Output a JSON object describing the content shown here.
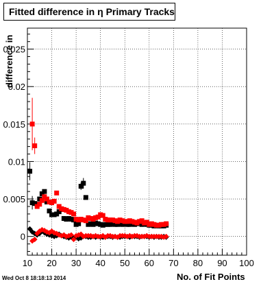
{
  "title": "Fitted difference in  η Primary Tracks",
  "datestamp": "Wed Oct  8 18:18:13 2014",
  "chart_data": {
    "type": "scatter",
    "xlabel": "No. of Fit Points",
    "ylabel": "difference in",
    "xlim": [
      10,
      100
    ],
    "ylim": [
      -0.0025,
      0.0278
    ],
    "grid": true,
    "xticks": [
      "10",
      "20",
      "30",
      "40",
      "50",
      "60",
      "70",
      "80",
      "90",
      "100"
    ],
    "xtick_values": [
      10,
      20,
      30,
      40,
      50,
      60,
      70,
      80,
      90,
      100
    ],
    "yticks": [
      "0",
      "0.005",
      "0.01",
      "0.015",
      "0.02",
      "0.025"
    ],
    "ytick_values": [
      0,
      0.005,
      0.01,
      0.015,
      0.02,
      0.025
    ],
    "series": [
      {
        "color": "#000000",
        "marker": "square",
        "points": [
          [
            11,
            0.0087
          ],
          [
            12,
            0.0045
          ],
          [
            13,
            0.0044
          ],
          [
            14,
            0.0043
          ],
          [
            15,
            0.005
          ],
          [
            16,
            0.0057
          ],
          [
            17,
            0.006
          ],
          [
            18,
            0.0046
          ],
          [
            19,
            0.0034
          ],
          [
            20,
            0.0029
          ],
          [
            21,
            0.0029
          ],
          [
            22,
            0.003
          ],
          [
            23,
            0.0033
          ],
          [
            24,
            0.0036
          ],
          [
            25,
            0.0024
          ],
          [
            26,
            0.0023
          ],
          [
            27,
            0.0024
          ],
          [
            28,
            0.0023
          ],
          [
            29,
            0.0022
          ],
          [
            30,
            0.0016
          ],
          [
            31,
            0.0017
          ],
          [
            32,
            0.0067
          ],
          [
            33,
            0.0071
          ],
          [
            34,
            0.0052
          ],
          [
            35,
            0.0016
          ],
          [
            36,
            0.0017
          ],
          [
            37,
            0.0016
          ],
          [
            38,
            0.0018
          ],
          [
            39,
            0.0017
          ],
          [
            40,
            0.0016
          ],
          [
            41,
            0.0015
          ],
          [
            42,
            0.0016
          ],
          [
            43,
            0.0016
          ],
          [
            44,
            0.0016
          ],
          [
            45,
            0.0017
          ],
          [
            46,
            0.0016
          ],
          [
            47,
            0.0016
          ],
          [
            48,
            0.0017
          ],
          [
            49,
            0.0016
          ],
          [
            50,
            0.0017
          ],
          [
            51,
            0.0016
          ],
          [
            52,
            0.0016
          ],
          [
            53,
            0.0017
          ],
          [
            54,
            0.0016
          ],
          [
            55,
            0.0017
          ],
          [
            56,
            0.0018
          ],
          [
            57,
            0.0016
          ],
          [
            58,
            0.0017
          ],
          [
            59,
            0.0016
          ],
          [
            60,
            0.0015
          ],
          [
            61,
            0.0015
          ],
          [
            62,
            0.0014
          ],
          [
            63,
            0.0015
          ],
          [
            64,
            0.0014
          ],
          [
            65,
            0.0014
          ],
          [
            66,
            0.0014
          ],
          [
            67,
            0.0015
          ]
        ],
        "errors": [
          [
            11,
            0.0012
          ],
          [
            12,
            0.0009
          ],
          [
            32,
            0.0005
          ],
          [
            33,
            0.0007
          ]
        ]
      },
      {
        "color": "#ff0000",
        "marker": "square",
        "points": [
          [
            12,
            0.015
          ],
          [
            13,
            0.0121
          ],
          [
            14,
            0.004
          ],
          [
            15,
            0.0043
          ],
          [
            16,
            0.0048
          ],
          [
            17,
            0.0053
          ],
          [
            18,
            0.005
          ],
          [
            19,
            0.0046
          ],
          [
            20,
            0.0045
          ],
          [
            21,
            0.0047
          ],
          [
            22,
            0.0058
          ],
          [
            23,
            0.004
          ],
          [
            24,
            0.0037
          ],
          [
            25,
            0.0036
          ],
          [
            26,
            0.0035
          ],
          [
            27,
            0.0033
          ],
          [
            28,
            0.0032
          ],
          [
            29,
            0.003
          ],
          [
            30,
            0.0023
          ],
          [
            31,
            0.0022
          ],
          [
            32,
            0.0023
          ],
          [
            33,
            0.0022
          ],
          [
            34,
            0.0021
          ],
          [
            35,
            0.0025
          ],
          [
            36,
            0.0024
          ],
          [
            37,
            0.0023
          ],
          [
            38,
            0.0025
          ],
          [
            39,
            0.0026
          ],
          [
            40,
            0.0029
          ],
          [
            41,
            0.0028
          ],
          [
            42,
            0.0023
          ],
          [
            43,
            0.0022
          ],
          [
            44,
            0.0022
          ],
          [
            45,
            0.0022
          ],
          [
            46,
            0.0021
          ],
          [
            47,
            0.002
          ],
          [
            48,
            0.0022
          ],
          [
            49,
            0.0021
          ],
          [
            50,
            0.002
          ],
          [
            51,
            0.002
          ],
          [
            52,
            0.0021
          ],
          [
            53,
            0.002
          ],
          [
            54,
            0.0019
          ],
          [
            55,
            0.0018
          ],
          [
            56,
            0.002
          ],
          [
            57,
            0.0021
          ],
          [
            58,
            0.0018
          ],
          [
            59,
            0.0019
          ],
          [
            60,
            0.0016
          ],
          [
            61,
            0.0017
          ],
          [
            62,
            0.0016
          ],
          [
            63,
            0.0015
          ],
          [
            64,
            0.0015
          ],
          [
            65,
            0.0016
          ],
          [
            66,
            0.0016
          ],
          [
            67,
            0.0017
          ]
        ],
        "errors": [
          [
            12,
            0.0035
          ],
          [
            13,
            0.0011
          ]
        ]
      },
      {
        "color": "#000000",
        "marker": "diamond",
        "points": [
          [
            11,
            0.001
          ],
          [
            12,
            0.0006
          ],
          [
            13,
            0.0004
          ],
          [
            14,
            0.0002
          ],
          [
            15,
            0.0004
          ],
          [
            16,
            0.0007
          ],
          [
            17,
            0.0005
          ],
          [
            18,
            0.0003
          ],
          [
            19,
            0.0002
          ],
          [
            20,
            0.0001
          ],
          [
            21,
            0.0
          ],
          [
            22,
            0.0001
          ],
          [
            23,
            0.0003
          ],
          [
            24,
            0.0001
          ],
          [
            25,
            0.0
          ],
          [
            26,
            -0.0001
          ],
          [
            27,
            -0.0002
          ],
          [
            28,
            -0.0001
          ],
          [
            29,
            -0.0002
          ],
          [
            30,
            -0.0001
          ],
          [
            31,
            -0.0003
          ],
          [
            32,
            -0.0002
          ],
          [
            33,
            0.0
          ],
          [
            34,
            0.0
          ],
          [
            35,
            -0.0001
          ],
          [
            36,
            -0.0001
          ],
          [
            37,
            0.0
          ],
          [
            38,
            -0.0001
          ],
          [
            39,
            0.0
          ],
          [
            40,
            -0.0001
          ],
          [
            41,
            -0.0001
          ],
          [
            42,
            -0.0001
          ],
          [
            43,
            0.0
          ],
          [
            44,
            0.0
          ],
          [
            45,
            -0.0001
          ],
          [
            46,
            0.0
          ],
          [
            47,
            -0.0001
          ],
          [
            48,
            -0.0001
          ],
          [
            49,
            0.0
          ],
          [
            50,
            0.0
          ],
          [
            51,
            0.0
          ],
          [
            52,
            -0.0001
          ],
          [
            53,
            0.0
          ],
          [
            54,
            0.0
          ],
          [
            55,
            0.0
          ],
          [
            56,
            -0.0001
          ],
          [
            57,
            0.0
          ],
          [
            58,
            0.0
          ],
          [
            59,
            0.0
          ],
          [
            60,
            -0.0001
          ],
          [
            61,
            0.0
          ],
          [
            62,
            -0.0001
          ],
          [
            63,
            0.0
          ],
          [
            64,
            -0.0001
          ],
          [
            65,
            -0.0001
          ],
          [
            66,
            0.0
          ],
          [
            67,
            -0.0001
          ]
        ]
      },
      {
        "color": "#ff0000",
        "marker": "diamond",
        "points": [
          [
            12,
            -0.0006
          ],
          [
            13,
            -0.0004
          ],
          [
            14,
            0.0004
          ],
          [
            15,
            0.0007
          ],
          [
            16,
            0.0009
          ],
          [
            17,
            0.0008
          ],
          [
            18,
            0.0006
          ],
          [
            19,
            0.0005
          ],
          [
            20,
            0.0007
          ],
          [
            21,
            0.0005
          ],
          [
            22,
            0.0004
          ],
          [
            23,
            0.0002
          ],
          [
            24,
            0.0001
          ],
          [
            25,
            0.0002
          ],
          [
            26,
            0.0
          ],
          [
            27,
            0.0001
          ],
          [
            28,
            0.0002
          ],
          [
            29,
            -0.0004
          ],
          [
            30,
            0.0001
          ],
          [
            31,
            0.0002
          ],
          [
            32,
            0.0003
          ],
          [
            33,
            0.0
          ],
          [
            34,
            0.0001
          ],
          [
            35,
            0.0001
          ],
          [
            36,
            0.0001
          ],
          [
            37,
            0.0
          ],
          [
            38,
            0.0001
          ],
          [
            39,
            0.0
          ],
          [
            40,
            0.0
          ],
          [
            41,
            0.0001
          ],
          [
            42,
            -0.0001
          ],
          [
            43,
            0.0001
          ],
          [
            44,
            0.0001
          ],
          [
            45,
            0.0
          ],
          [
            46,
            0.0
          ],
          [
            47,
            -0.0001
          ],
          [
            48,
            0.0001
          ],
          [
            49,
            0.0001
          ],
          [
            50,
            0.0001
          ],
          [
            51,
            0.0
          ],
          [
            52,
            0.0001
          ],
          [
            53,
            0.0
          ],
          [
            54,
            0.0001
          ],
          [
            55,
            0.0001
          ],
          [
            56,
            0.0
          ],
          [
            57,
            0.0
          ],
          [
            58,
            0.0
          ],
          [
            59,
            0.0001
          ],
          [
            60,
            0.0
          ],
          [
            61,
            0.0
          ],
          [
            62,
            0.0
          ],
          [
            63,
            0.0
          ],
          [
            64,
            0.0
          ],
          [
            65,
            0.0
          ],
          [
            66,
            -0.0001
          ],
          [
            67,
            0.0
          ]
        ]
      }
    ]
  }
}
